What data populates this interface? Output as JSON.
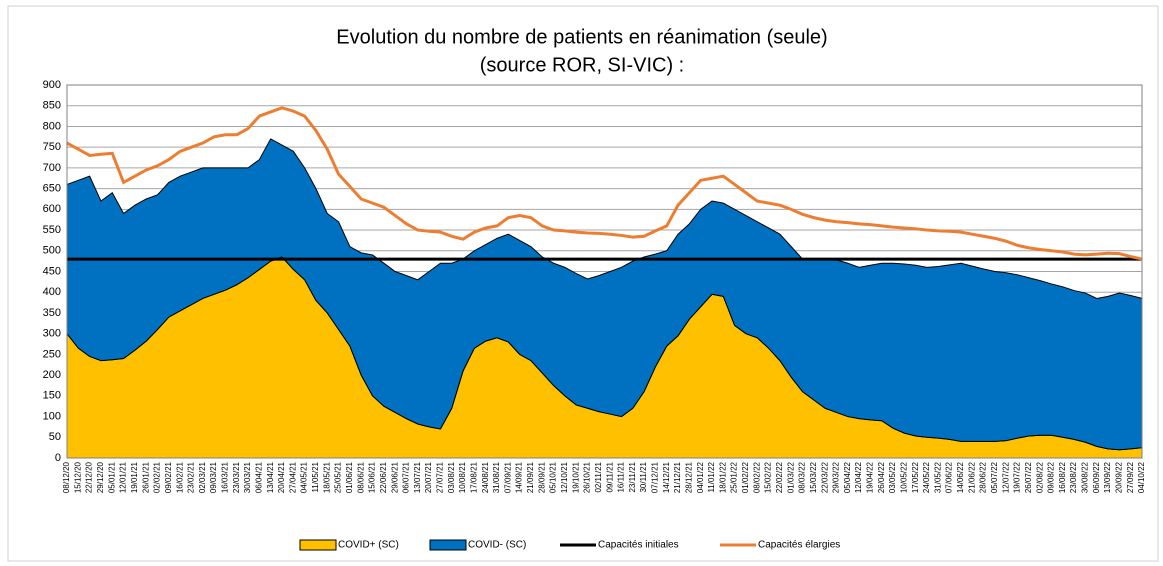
{
  "chart_data": {
    "type": "stacked-area",
    "title": "Evolution du nombre de patients en réanimation (seule)",
    "subtitle": "(source ROR, SI-VIC) :",
    "categories": [
      "08/12/20",
      "15/12/20",
      "22/12/20",
      "29/12/20",
      "05/01/21",
      "12/01/21",
      "19/01/21",
      "26/01/21",
      "02/02/21",
      "09/02/21",
      "16/02/21",
      "23/02/21",
      "02/03/21",
      "09/03/21",
      "16/03/21",
      "23/03/21",
      "30/03/21",
      "06/04/21",
      "13/04/21",
      "20/04/21",
      "27/04/21",
      "04/05/21",
      "11/05/21",
      "18/05/21",
      "25/05/21",
      "01/06/21",
      "08/06/21",
      "15/06/21",
      "22/06/21",
      "29/06/21",
      "06/07/21",
      "13/07/21",
      "20/07/21",
      "27/07/21",
      "03/08/21",
      "10/08/21",
      "17/08/21",
      "24/08/21",
      "31/08/21",
      "07/09/21",
      "14/09/21",
      "21/09/21",
      "28/09/21",
      "05/10/21",
      "12/10/21",
      "19/10/21",
      "26/10/21",
      "02/11/21",
      "09/11/21",
      "16/11/21",
      "23/11/21",
      "30/11/21",
      "07/12/21",
      "14/12/21",
      "21/12/21",
      "28/12/21",
      "04/01/22",
      "11/01/22",
      "18/01/22",
      "25/01/22",
      "01/02/22",
      "08/02/22",
      "15/02/22",
      "22/02/22",
      "01/03/22",
      "08/03/22",
      "15/03/22",
      "22/03/22",
      "29/03/22",
      "05/04/22",
      "12/04/22",
      "19/04/22",
      "26/04/22",
      "03/05/22",
      "10/05/22",
      "17/05/22",
      "24/05/22",
      "31/05/22",
      "07/06/22",
      "14/06/22",
      "21/06/22",
      "28/06/22",
      "05/07/22",
      "12/07/22",
      "19/07/22",
      "26/07/22",
      "02/08/22",
      "09/08/22",
      "16/08/22",
      "23/08/22",
      "30/08/22",
      "06/09/22",
      "13/09/22",
      "20/09/22",
      "27/09/22",
      "04/10/22"
    ],
    "series": [
      {
        "name": "COVID+ (SC)",
        "kind": "area",
        "color": "#ffc000",
        "values": [
          300,
          265,
          245,
          235,
          237,
          240,
          260,
          282,
          310,
          340,
          355,
          370,
          385,
          395,
          405,
          418,
          435,
          455,
          475,
          485,
          455,
          430,
          380,
          350,
          310,
          270,
          200,
          150,
          125,
          110,
          95,
          82,
          75,
          70,
          120,
          210,
          265,
          282,
          290,
          280,
          250,
          235,
          205,
          175,
          150,
          128,
          120,
          112,
          106,
          100,
          120,
          160,
          220,
          270,
          295,
          335,
          365,
          395,
          390,
          320,
          300,
          290,
          265,
          235,
          195,
          160,
          140,
          120,
          110,
          100,
          95,
          92,
          90,
          72,
          60,
          53,
          50,
          48,
          45,
          40,
          40,
          40,
          40,
          42,
          48,
          53,
          55,
          55,
          50,
          45,
          38,
          28,
          22,
          20,
          22,
          25
        ]
      },
      {
        "name": "COVID- (SC)",
        "kind": "area",
        "color": "#0070c0",
        "values": [
          360,
          405,
          435,
          385,
          403,
          350,
          350,
          343,
          325,
          325,
          325,
          320,
          315,
          305,
          295,
          282,
          265,
          265,
          295,
          270,
          285,
          270,
          270,
          240,
          260,
          240,
          295,
          340,
          345,
          340,
          345,
          348,
          375,
          400,
          350,
          270,
          235,
          233,
          240,
          260,
          275,
          275,
          280,
          295,
          310,
          317,
          312,
          328,
          344,
          360,
          355,
          325,
          272,
          230,
          245,
          230,
          235,
          225,
          225,
          280,
          285,
          280,
          290,
          305,
          315,
          320,
          340,
          360,
          368,
          370,
          365,
          373,
          380,
          398,
          408,
          412,
          410,
          414,
          421,
          430,
          423,
          416,
          410,
          405,
          394,
          382,
          373,
          365,
          363,
          359,
          360,
          357,
          368,
          378,
          370,
          360
        ]
      },
      {
        "name": "Capacités initiales",
        "kind": "line",
        "color": "#000000",
        "values": [
          480,
          480,
          480,
          480,
          480,
          480,
          480,
          480,
          480,
          480,
          480,
          480,
          480,
          480,
          480,
          480,
          480,
          480,
          480,
          480,
          480,
          480,
          480,
          480,
          480,
          480,
          480,
          480,
          480,
          480,
          480,
          480,
          480,
          480,
          480,
          480,
          480,
          480,
          480,
          480,
          480,
          480,
          480,
          480,
          480,
          480,
          480,
          480,
          480,
          480,
          480,
          480,
          480,
          480,
          480,
          480,
          480,
          480,
          480,
          480,
          480,
          480,
          480,
          480,
          480,
          480,
          480,
          480,
          480,
          480,
          480,
          480,
          480,
          480,
          480,
          480,
          480,
          480,
          480,
          480,
          480,
          480,
          480,
          480,
          480,
          480,
          480,
          480,
          480,
          480,
          480,
          480,
          480,
          480,
          480,
          480
        ]
      },
      {
        "name": "Capacités élargies",
        "kind": "line",
        "color": "#ed7d31",
        "values": [
          760,
          745,
          730,
          733,
          735,
          665,
          680,
          695,
          705,
          720,
          740,
          750,
          760,
          775,
          780,
          780,
          795,
          825,
          835,
          845,
          837,
          825,
          790,
          745,
          685,
          655,
          625,
          615,
          605,
          585,
          565,
          550,
          547,
          545,
          535,
          528,
          545,
          555,
          560,
          580,
          585,
          580,
          560,
          550,
          548,
          545,
          543,
          542,
          540,
          537,
          533,
          535,
          548,
          560,
          610,
          640,
          670,
          675,
          680,
          660,
          640,
          620,
          615,
          610,
          600,
          588,
          580,
          574,
          570,
          568,
          565,
          563,
          560,
          557,
          555,
          553,
          550,
          548,
          547,
          545,
          540,
          535,
          530,
          523,
          513,
          507,
          503,
          500,
          497,
          492,
          490,
          492,
          494,
          493,
          486,
          480
        ]
      }
    ],
    "ylim": [
      0,
      900
    ],
    "yticks": [
      0,
      50,
      100,
      150,
      200,
      250,
      300,
      350,
      400,
      450,
      500,
      550,
      600,
      650,
      700,
      750,
      800,
      850,
      900
    ],
    "grid": true,
    "legend": "bottom"
  }
}
